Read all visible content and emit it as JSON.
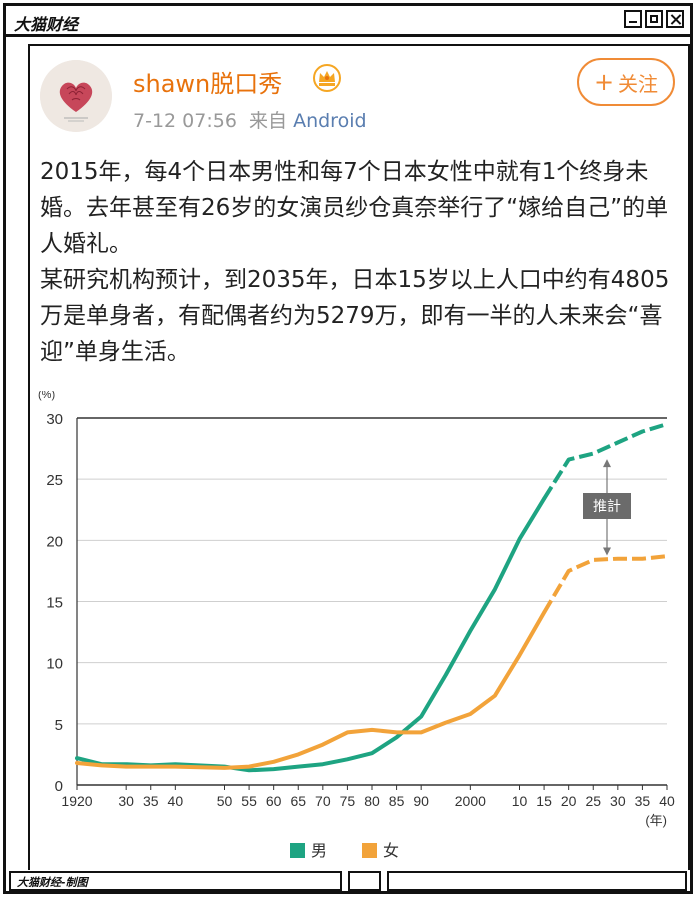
{
  "window": {
    "title": "大猫财经"
  },
  "footer": {
    "credit": "大猫财经-制图"
  },
  "post": {
    "username": "shawn脱口秀",
    "timestamp": "7-12 07:56",
    "source_prefix": "来自",
    "source": "Android",
    "follow_label": "关注",
    "paragraphs": [
      "2015年，每4个日本男性和每7个日本女性中就有1个终身未婚。去年甚至有26岁的女演员纱仓真奈举行了“嫁给自己”的单人婚礼。",
      "某研究机构预计，到2035年，日本15岁以上人口中约有4805万是单身者，有配偶者约为5279万，即有一半的人未来会“喜迎”单身生活。"
    ]
  },
  "icons": {
    "avatar": "fingerprint-heart-avatar",
    "badge": "crown-icon",
    "follow": "plus-icon"
  },
  "chart_data": {
    "type": "line",
    "title": "",
    "ylabel": "(%)",
    "xlabel": "(年)",
    "ylim": [
      0,
      30
    ],
    "yticks": [
      0,
      5,
      10,
      15,
      20,
      25,
      30
    ],
    "xticks": [
      {
        "x": 1920,
        "label": "1920"
      },
      {
        "x": 1930,
        "label": "30"
      },
      {
        "x": 1935,
        "label": "35"
      },
      {
        "x": 1940,
        "label": "40"
      },
      {
        "x": 1950,
        "label": "50"
      },
      {
        "x": 1955,
        "label": "55"
      },
      {
        "x": 1960,
        "label": "60"
      },
      {
        "x": 1965,
        "label": "65"
      },
      {
        "x": 1970,
        "label": "70"
      },
      {
        "x": 1975,
        "label": "75"
      },
      {
        "x": 1980,
        "label": "80"
      },
      {
        "x": 1985,
        "label": "85"
      },
      {
        "x": 1990,
        "label": "90"
      },
      {
        "x": 2000,
        "label": "2000"
      },
      {
        "x": 2010,
        "label": "10"
      },
      {
        "x": 2015,
        "label": "15"
      },
      {
        "x": 2020,
        "label": "20"
      },
      {
        "x": 2025,
        "label": "25"
      },
      {
        "x": 2030,
        "label": "30"
      },
      {
        "x": 2035,
        "label": "35"
      },
      {
        "x": 2040,
        "label": "40"
      }
    ],
    "annotation": "推計",
    "legend_position": "bottom",
    "series": [
      {
        "name": "男",
        "color": "#1ea482",
        "x": [
          1920,
          1925,
          1930,
          1935,
          1940,
          1950,
          1955,
          1960,
          1965,
          1970,
          1975,
          1980,
          1985,
          1990,
          1995,
          2000,
          2005,
          2010,
          2015,
          2020,
          2025,
          2030,
          2035,
          2040
        ],
        "y": [
          2.2,
          1.7,
          1.7,
          1.6,
          1.7,
          1.5,
          1.2,
          1.3,
          1.5,
          1.7,
          2.1,
          2.6,
          3.9,
          5.6,
          9.0,
          12.6,
          16.0,
          20.1,
          23.4,
          26.6,
          27.1,
          28.0,
          28.9,
          29.5
        ],
        "projected_from": 2015
      },
      {
        "name": "女",
        "color": "#f2a33a",
        "x": [
          1920,
          1925,
          1930,
          1935,
          1940,
          1950,
          1955,
          1960,
          1965,
          1970,
          1975,
          1980,
          1985,
          1990,
          1995,
          2000,
          2005,
          2010,
          2015,
          2020,
          2025,
          2030,
          2035,
          2040
        ],
        "y": [
          1.8,
          1.6,
          1.5,
          1.5,
          1.5,
          1.4,
          1.5,
          1.9,
          2.5,
          3.3,
          4.3,
          4.5,
          4.3,
          4.3,
          5.1,
          5.8,
          7.3,
          10.6,
          14.1,
          17.5,
          18.4,
          18.5,
          18.5,
          18.7
        ],
        "projected_from": 2015
      }
    ]
  }
}
